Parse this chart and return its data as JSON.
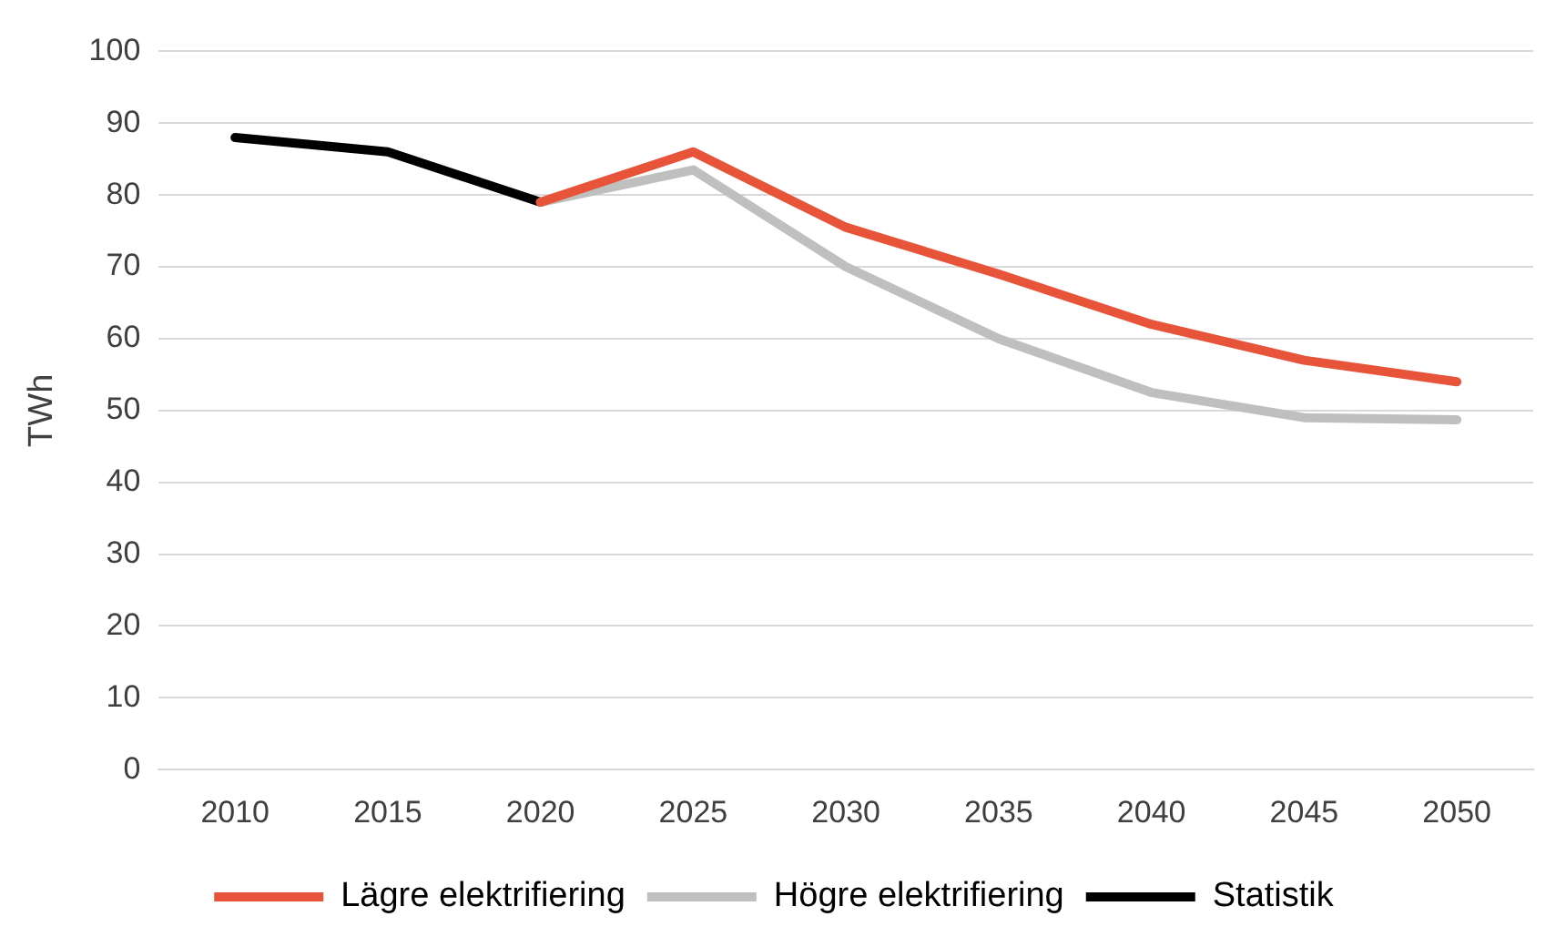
{
  "chart_data": {
    "type": "line",
    "ylabel": "TWh",
    "categories": [
      "2010",
      "2015",
      "2020",
      "2025",
      "2030",
      "2035",
      "2040",
      "2045",
      "2050"
    ],
    "series": [
      {
        "name": "Lägre elektrifiering",
        "color": "#e8543a",
        "values": [
          null,
          null,
          79,
          86,
          75.5,
          69,
          62,
          57,
          54
        ]
      },
      {
        "name": "Högre elektrifiering",
        "color": "#bfbfbf",
        "values": [
          null,
          null,
          79,
          83.5,
          70,
          60,
          52.5,
          49,
          48.7
        ]
      },
      {
        "name": "Statistik",
        "color": "#000000",
        "values": [
          88,
          86,
          79,
          null,
          null,
          null,
          null,
          null,
          null
        ]
      }
    ],
    "ylim": [
      0,
      100
    ],
    "yticks": [
      0,
      10,
      20,
      30,
      40,
      50,
      60,
      70,
      80,
      90,
      100
    ],
    "grid": "y",
    "legend": "bottom",
    "marker": "none",
    "line_style": "solid"
  }
}
